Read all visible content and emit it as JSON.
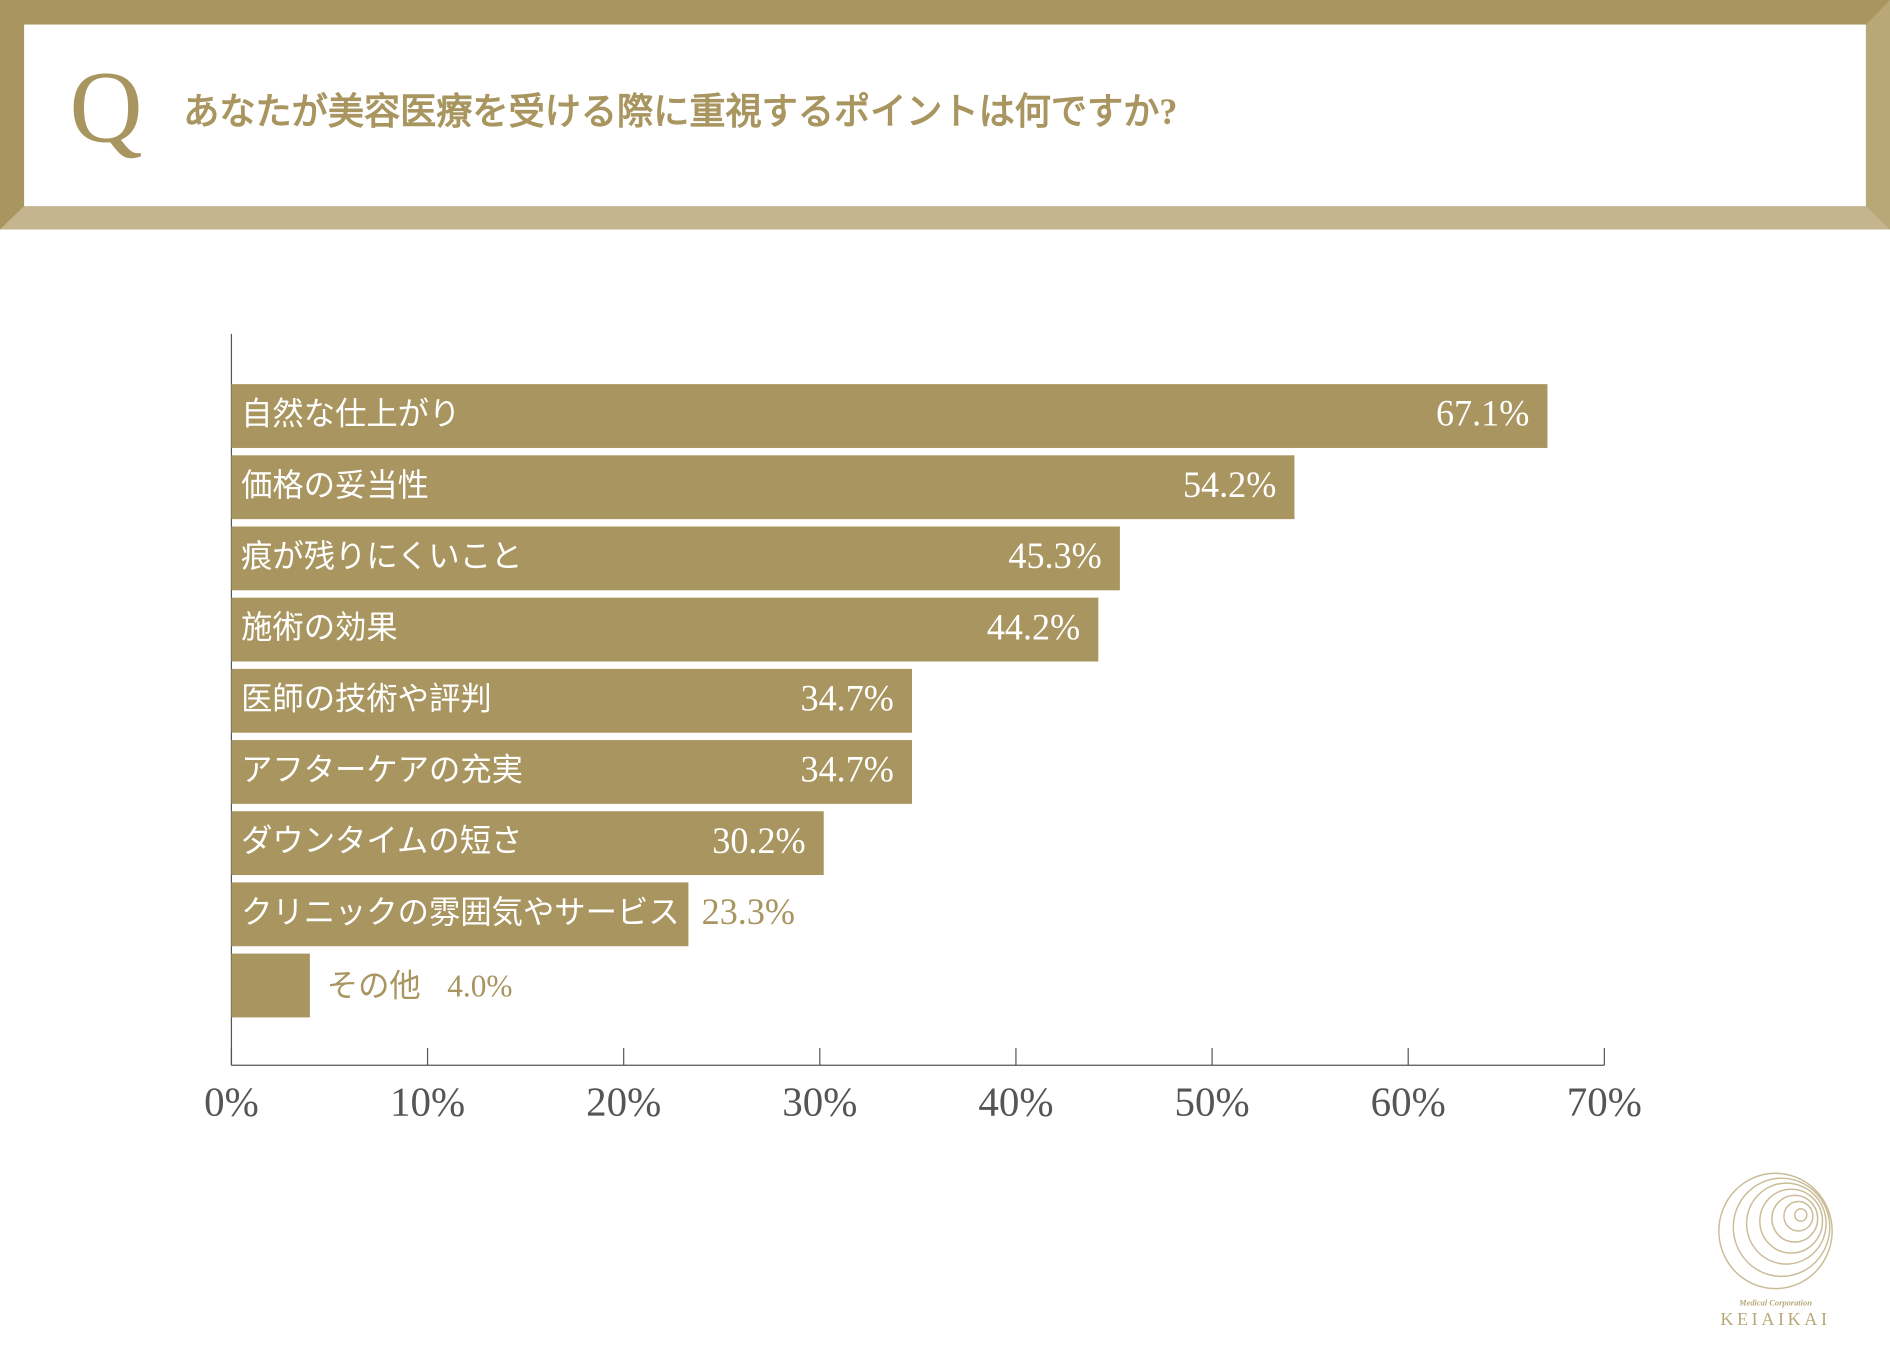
{
  "chart_data": {
    "type": "hbar",
    "letter": "Q",
    "title": "あなたが美容医療を受ける際に重視するポイントは何ですか?",
    "categories": [
      "自然な仕上がり",
      "価格の妥当性",
      "痕が残りにくいこと",
      "施術の効果",
      "医師の技術や評判",
      "アフターケアの充実",
      "ダウンタイムの短さ",
      "クリニックの雰囲気やサービス",
      "その他"
    ],
    "values": [
      67.1,
      54.2,
      45.3,
      44.2,
      34.7,
      34.7,
      30.2,
      23.3,
      4.0
    ],
    "value_labels": [
      "67.1%",
      "54.2%",
      "45.3%",
      "44.2%",
      "34.7%",
      "34.7%",
      "30.2%",
      "23.3%",
      "4.0%"
    ],
    "color": "#a8955f",
    "xlim": [
      0,
      70
    ],
    "xticks": [
      {
        "value": 0,
        "label": "0%"
      },
      {
        "value": 10,
        "label": "10%"
      },
      {
        "value": 20,
        "label": "20%"
      },
      {
        "value": 30,
        "label": "30%"
      },
      {
        "value": 40,
        "label": "40%"
      },
      {
        "value": 50,
        "label": "50%"
      },
      {
        "value": 60,
        "label": "60%"
      },
      {
        "value": 70,
        "label": "70%"
      }
    ],
    "logo_subtitle": "Medical Corporation",
    "logo_name": "KEIAIKAI"
  }
}
